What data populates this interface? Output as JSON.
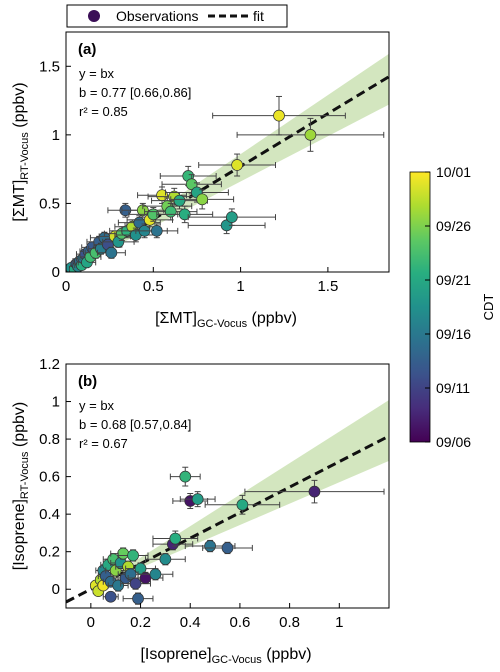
{
  "legend": {
    "observations_label": "Observations",
    "fit_label": "fit",
    "marker_color": "#3b0f57"
  },
  "colorbar": {
    "label": "CDT",
    "ticks": [
      "10/01",
      "09/26",
      "09/21",
      "09/16",
      "09/11",
      "09/06"
    ],
    "colormap": "viridis"
  },
  "colors": {
    "confidence_band": "#d3e6bf",
    "fit_line": "#111111",
    "error_bar": "#444444"
  },
  "chart_data": [
    {
      "type": "scatter",
      "panel": "(a)",
      "eq": {
        "l1": "y = bx",
        "l2": "b = 0.77 [0.66,0.86]",
        "l3": "r² = 0.85"
      },
      "slope": 0.77,
      "ci": [
        0.66,
        0.86
      ],
      "r2": 0.85,
      "xlabel": "[ΣMT]GC-Vocus (ppbv)",
      "ylabel": "[ΣMT]RT-Vocus (ppbv)",
      "xlim": [
        0,
        1.85
      ],
      "ylim": [
        0,
        1.75
      ],
      "xticks": [
        0,
        0.5,
        1,
        1.5
      ],
      "yticks": [
        0,
        0.5,
        1,
        1.5
      ],
      "points": [
        {
          "x": 0.02,
          "y": 0.0,
          "xe": 0.02,
          "ye": 0.02,
          "c": 0.55
        },
        {
          "x": 0.03,
          "y": 0.03,
          "xe": 0.02,
          "ye": 0.02,
          "c": 0.5
        },
        {
          "x": 0.05,
          "y": 0.02,
          "xe": 0.03,
          "ye": 0.02,
          "c": 0.6
        },
        {
          "x": 0.06,
          "y": 0.06,
          "xe": 0.03,
          "ye": 0.03,
          "c": 0.3
        },
        {
          "x": 0.07,
          "y": 0.04,
          "xe": 0.03,
          "ye": 0.02,
          "c": 0.45
        },
        {
          "x": 0.08,
          "y": 0.08,
          "xe": 0.04,
          "ye": 0.03,
          "c": 0.35
        },
        {
          "x": 0.09,
          "y": 0.05,
          "xe": 0.04,
          "ye": 0.03,
          "c": 0.62
        },
        {
          "x": 0.1,
          "y": 0.1,
          "xe": 0.04,
          "ye": 0.03,
          "c": 0.4
        },
        {
          "x": 0.11,
          "y": 0.13,
          "xe": 0.05,
          "ye": 0.03,
          "c": 0.25
        },
        {
          "x": 0.12,
          "y": 0.07,
          "xe": 0.05,
          "ye": 0.03,
          "c": 0.58
        },
        {
          "x": 0.13,
          "y": 0.15,
          "xe": 0.05,
          "ye": 0.03,
          "c": 0.32
        },
        {
          "x": 0.14,
          "y": 0.11,
          "xe": 0.06,
          "ye": 0.03,
          "c": 0.68
        },
        {
          "x": 0.15,
          "y": 0.18,
          "xe": 0.06,
          "ye": 0.04,
          "c": 0.28
        },
        {
          "x": 0.17,
          "y": 0.14,
          "xe": 0.06,
          "ye": 0.04,
          "c": 0.7
        },
        {
          "x": 0.19,
          "y": 0.22,
          "xe": 0.07,
          "ye": 0.04,
          "c": 0.3
        },
        {
          "x": 0.2,
          "y": 0.17,
          "xe": 0.07,
          "ye": 0.04,
          "c": 0.42
        },
        {
          "x": 0.22,
          "y": 0.25,
          "xe": 0.08,
          "ye": 0.04,
          "c": 0.36
        },
        {
          "x": 0.24,
          "y": 0.2,
          "xe": 0.08,
          "ye": 0.04,
          "c": 0.24
        },
        {
          "x": 0.26,
          "y": 0.14,
          "xe": 0.08,
          "ye": 0.04,
          "c": 0.38
        },
        {
          "x": 0.28,
          "y": 0.26,
          "xe": 0.09,
          "ye": 0.04,
          "c": 0.93
        },
        {
          "x": 0.3,
          "y": 0.22,
          "xe": 0.09,
          "ye": 0.04,
          "c": 0.52
        },
        {
          "x": 0.32,
          "y": 0.28,
          "xe": 0.1,
          "ye": 0.05,
          "c": 0.72
        },
        {
          "x": 0.34,
          "y": 0.45,
          "xe": 0.1,
          "ye": 0.05,
          "c": 0.3
        },
        {
          "x": 0.35,
          "y": 0.3,
          "xe": 0.1,
          "ye": 0.05,
          "c": 0.64
        },
        {
          "x": 0.38,
          "y": 0.33,
          "xe": 0.1,
          "ye": 0.05,
          "c": 0.88
        },
        {
          "x": 0.4,
          "y": 0.27,
          "xe": 0.12,
          "ye": 0.05,
          "c": 0.5
        },
        {
          "x": 0.42,
          "y": 0.36,
          "xe": 0.12,
          "ye": 0.05,
          "c": 0.35
        },
        {
          "x": 0.44,
          "y": 0.45,
          "xe": 0.12,
          "ye": 0.05,
          "c": 0.82
        },
        {
          "x": 0.45,
          "y": 0.3,
          "xe": 0.13,
          "ye": 0.05,
          "c": 0.45
        },
        {
          "x": 0.48,
          "y": 0.38,
          "xe": 0.13,
          "ye": 0.05,
          "c": 0.96
        },
        {
          "x": 0.5,
          "y": 0.42,
          "xe": 0.14,
          "ye": 0.05,
          "c": 0.72
        },
        {
          "x": 0.52,
          "y": 0.3,
          "xe": 0.12,
          "ye": 0.05,
          "c": 0.38
        },
        {
          "x": 0.55,
          "y": 0.56,
          "xe": 0.14,
          "ye": 0.06,
          "c": 0.95
        },
        {
          "x": 0.58,
          "y": 0.48,
          "xe": 0.14,
          "ye": 0.06,
          "c": 0.78
        },
        {
          "x": 0.6,
          "y": 0.44,
          "xe": 0.15,
          "ye": 0.06,
          "c": 0.68
        },
        {
          "x": 0.62,
          "y": 0.55,
          "xe": 0.15,
          "ye": 0.06,
          "c": 0.88
        },
        {
          "x": 0.65,
          "y": 0.52,
          "xe": 0.16,
          "ye": 0.06,
          "c": 0.6
        },
        {
          "x": 0.68,
          "y": 0.42,
          "xe": 0.16,
          "ye": 0.06,
          "c": 0.62
        },
        {
          "x": 0.7,
          "y": 0.7,
          "xe": 0.16,
          "ye": 0.07,
          "c": 0.66
        },
        {
          "x": 0.72,
          "y": 0.64,
          "xe": 0.17,
          "ye": 0.07,
          "c": 0.74
        },
        {
          "x": 0.75,
          "y": 0.58,
          "xe": 0.18,
          "ye": 0.07,
          "c": 0.58
        },
        {
          "x": 0.78,
          "y": 0.53,
          "xe": 0.18,
          "ye": 0.07,
          "c": 0.82
        },
        {
          "x": 0.92,
          "y": 0.34,
          "xe": 0.22,
          "ye": 0.06,
          "c": 0.52
        },
        {
          "x": 0.95,
          "y": 0.4,
          "xe": 0.25,
          "ye": 0.06,
          "c": 0.55
        },
        {
          "x": 0.98,
          "y": 0.78,
          "xe": 0.22,
          "ye": 0.08,
          "c": 0.95
        },
        {
          "x": 1.22,
          "y": 1.14,
          "xe": 0.38,
          "ye": 0.14,
          "c": 0.97
        },
        {
          "x": 1.4,
          "y": 1.0,
          "xe": 0.42,
          "ye": 0.12,
          "c": 0.85
        }
      ]
    },
    {
      "type": "scatter",
      "panel": "(b)",
      "eq": {
        "l1": "y = bx",
        "l2": "b = 0.68 [0.57,0.84]",
        "l3": "r² = 0.67"
      },
      "slope": 0.68,
      "ci": [
        0.57,
        0.84
      ],
      "r2": 0.67,
      "xlabel": "[Isoprene]GC-Vocus (ppbv)",
      "ylabel": "[Isoprene]RT-Vocus (ppbv)",
      "xlim": [
        -0.1,
        1.2
      ],
      "ylim": [
        -0.1,
        1.2
      ],
      "xticks": [
        0,
        0.2,
        0.4,
        0.6,
        0.8,
        1
      ],
      "yticks": [
        0,
        0.2,
        0.4,
        0.6,
        0.8,
        1,
        1.2
      ],
      "points": [
        {
          "x": 0.02,
          "y": 0.02,
          "xe": 0.02,
          "ye": 0.02,
          "c": 0.95
        },
        {
          "x": 0.03,
          "y": -0.01,
          "xe": 0.02,
          "ye": 0.02,
          "c": 0.92
        },
        {
          "x": 0.04,
          "y": 0.05,
          "xe": 0.02,
          "ye": 0.02,
          "c": 0.88
        },
        {
          "x": 0.05,
          "y": 0.02,
          "xe": 0.02,
          "ye": 0.02,
          "c": 0.98
        },
        {
          "x": 0.05,
          "y": 0.1,
          "xe": 0.03,
          "ye": 0.02,
          "c": 0.45
        },
        {
          "x": 0.06,
          "y": 0.07,
          "xe": 0.03,
          "ye": 0.02,
          "c": 0.3
        },
        {
          "x": 0.07,
          "y": 0.13,
          "xe": 0.03,
          "ye": 0.03,
          "c": 0.6
        },
        {
          "x": 0.08,
          "y": 0.04,
          "xe": 0.03,
          "ye": 0.02,
          "c": 0.35
        },
        {
          "x": 0.08,
          "y": -0.04,
          "xe": 0.03,
          "ye": 0.02,
          "c": 0.25
        },
        {
          "x": 0.09,
          "y": 0.16,
          "xe": 0.04,
          "ye": 0.03,
          "c": 0.7
        },
        {
          "x": 0.1,
          "y": 0.1,
          "xe": 0.04,
          "ye": 0.03,
          "c": 0.82
        },
        {
          "x": 0.11,
          "y": 0.02,
          "xe": 0.04,
          "ye": 0.03,
          "c": 0.4
        },
        {
          "x": 0.12,
          "y": 0.14,
          "xe": 0.04,
          "ye": 0.03,
          "c": 0.5
        },
        {
          "x": 0.13,
          "y": 0.19,
          "xe": 0.05,
          "ye": 0.03,
          "c": 0.76
        },
        {
          "x": 0.14,
          "y": 0.06,
          "xe": 0.05,
          "ye": 0.03,
          "c": 0.28
        },
        {
          "x": 0.15,
          "y": 0.12,
          "xe": 0.05,
          "ye": 0.03,
          "c": 0.88
        },
        {
          "x": 0.16,
          "y": 0.08,
          "xe": 0.05,
          "ye": 0.03,
          "c": 0.36
        },
        {
          "x": 0.17,
          "y": 0.18,
          "xe": 0.06,
          "ye": 0.03,
          "c": 0.65
        },
        {
          "x": 0.18,
          "y": 0.03,
          "xe": 0.06,
          "ye": 0.03,
          "c": 0.2
        },
        {
          "x": 0.19,
          "y": -0.05,
          "xe": 0.06,
          "ye": 0.03,
          "c": 0.3
        },
        {
          "x": 0.2,
          "y": 0.11,
          "xe": 0.06,
          "ye": 0.03,
          "c": 0.55
        },
        {
          "x": 0.22,
          "y": 0.06,
          "xe": 0.07,
          "ye": 0.03,
          "c": 0.05
        },
        {
          "x": 0.26,
          "y": 0.08,
          "xe": 0.07,
          "ye": 0.03,
          "c": 0.45
        },
        {
          "x": 0.3,
          "y": 0.16,
          "xe": 0.08,
          "ye": 0.03,
          "c": 0.48
        },
        {
          "x": 0.33,
          "y": 0.24,
          "xe": 0.08,
          "ye": 0.03,
          "c": 0.1
        },
        {
          "x": 0.34,
          "y": 0.27,
          "xe": 0.09,
          "ye": 0.04,
          "c": 0.62
        },
        {
          "x": 0.38,
          "y": 0.6,
          "xe": 0.06,
          "ye": 0.05,
          "c": 0.65
        },
        {
          "x": 0.4,
          "y": 0.47,
          "xe": 0.07,
          "ye": 0.04,
          "c": 0.05
        },
        {
          "x": 0.43,
          "y": 0.48,
          "xe": 0.07,
          "ye": 0.04,
          "c": 0.55
        },
        {
          "x": 0.48,
          "y": 0.23,
          "xe": 0.1,
          "ye": 0.03,
          "c": 0.38
        },
        {
          "x": 0.55,
          "y": 0.22,
          "xe": 0.1,
          "ye": 0.03,
          "c": 0.3
        },
        {
          "x": 0.61,
          "y": 0.45,
          "xe": 0.15,
          "ye": 0.05,
          "c": 0.6
        },
        {
          "x": 0.9,
          "y": 0.52,
          "xe": 0.28,
          "ye": 0.06,
          "c": 0.1
        }
      ]
    }
  ]
}
